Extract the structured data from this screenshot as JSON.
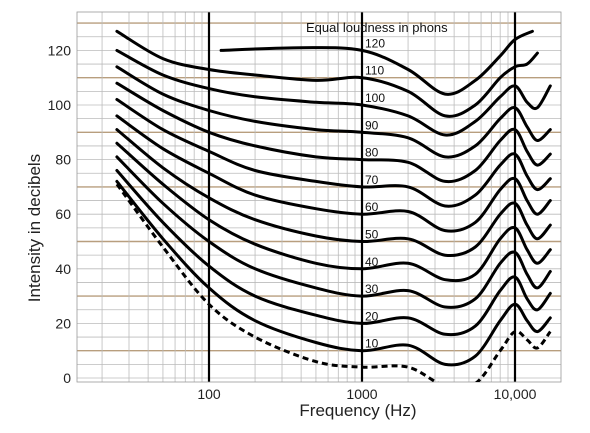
{
  "chart_data": {
    "type": "line",
    "title": "Equal loudness in phons",
    "xlabel": "Frequency (Hz)",
    "ylabel": "Intensity in decibels",
    "x_scale": "log",
    "xlim": [
      20,
      20000
    ],
    "ylim": [
      0,
      130
    ],
    "x_ticks": [
      {
        "value": 100,
        "label": "100"
      },
      {
        "value": 1000,
        "label": "1000",
        "color": "#e8112d"
      },
      {
        "value": 10000,
        "label": "10,000"
      }
    ],
    "y_ticks": [
      0,
      20,
      40,
      60,
      80,
      100,
      120
    ],
    "grid": true,
    "colors": {
      "curve": "#000000",
      "grid": "#bbbbbb",
      "grid_major": "#b89e7e",
      "accent": "#e8112d"
    },
    "series": [
      {
        "name": "120",
        "points": [
          [
            120,
            120
          ],
          [
            400,
            121
          ],
          [
            1000,
            120
          ],
          [
            2000,
            113
          ],
          [
            3500,
            104
          ],
          [
            5500,
            109
          ],
          [
            8000,
            118
          ],
          [
            10000,
            124
          ],
          [
            13000,
            127
          ]
        ]
      },
      {
        "name": "110",
        "points": [
          [
            25,
            127
          ],
          [
            50,
            117
          ],
          [
            100,
            113
          ],
          [
            200,
            111
          ],
          [
            500,
            109
          ],
          [
            1000,
            110
          ],
          [
            2000,
            105
          ],
          [
            3500,
            96
          ],
          [
            5500,
            100
          ],
          [
            8000,
            110
          ],
          [
            10000,
            114
          ],
          [
            12000,
            115
          ],
          [
            14000,
            119
          ]
        ]
      },
      {
        "name": "100",
        "points": [
          [
            25,
            120
          ],
          [
            50,
            111
          ],
          [
            100,
            106
          ],
          [
            200,
            103
          ],
          [
            500,
            101
          ],
          [
            1000,
            100
          ],
          [
            2000,
            96
          ],
          [
            3500,
            89
          ],
          [
            5500,
            94
          ],
          [
            8000,
            103
          ],
          [
            10000,
            107
          ],
          [
            12000,
            101
          ],
          [
            14000,
            99
          ],
          [
            17000,
            107
          ]
        ]
      },
      {
        "name": "90",
        "points": [
          [
            25,
            114
          ],
          [
            50,
            104
          ],
          [
            100,
            98
          ],
          [
            200,
            94
          ],
          [
            500,
            91
          ],
          [
            1000,
            90
          ],
          [
            2000,
            88
          ],
          [
            3500,
            81
          ],
          [
            5500,
            85
          ],
          [
            8000,
            95
          ],
          [
            10000,
            99
          ],
          [
            12000,
            92
          ],
          [
            14000,
            87
          ],
          [
            17000,
            91
          ]
        ]
      },
      {
        "name": "80",
        "points": [
          [
            25,
            108
          ],
          [
            50,
            98
          ],
          [
            100,
            90
          ],
          [
            200,
            85
          ],
          [
            500,
            81
          ],
          [
            1000,
            80
          ],
          [
            2000,
            79
          ],
          [
            3500,
            72
          ],
          [
            5500,
            76
          ],
          [
            8000,
            87
          ],
          [
            10000,
            91
          ],
          [
            12000,
            83
          ],
          [
            14000,
            78
          ],
          [
            17000,
            82
          ]
        ]
      },
      {
        "name": "70",
        "points": [
          [
            25,
            102
          ],
          [
            50,
            91
          ],
          [
            100,
            83
          ],
          [
            200,
            76
          ],
          [
            500,
            72
          ],
          [
            1000,
            70
          ],
          [
            2000,
            70
          ],
          [
            3500,
            63
          ],
          [
            5500,
            67
          ],
          [
            8000,
            78
          ],
          [
            10000,
            82
          ],
          [
            12000,
            74
          ],
          [
            14000,
            69
          ],
          [
            17000,
            73
          ]
        ]
      },
      {
        "name": "60",
        "points": [
          [
            25,
            96
          ],
          [
            50,
            84
          ],
          [
            100,
            75
          ],
          [
            200,
            67
          ],
          [
            500,
            62
          ],
          [
            1000,
            60
          ],
          [
            2000,
            61
          ],
          [
            3500,
            54
          ],
          [
            5500,
            57
          ],
          [
            8000,
            69
          ],
          [
            10000,
            73
          ],
          [
            12000,
            65
          ],
          [
            14000,
            60
          ],
          [
            17000,
            65
          ]
        ]
      },
      {
        "name": "50",
        "points": [
          [
            25,
            91
          ],
          [
            50,
            77
          ],
          [
            100,
            66
          ],
          [
            200,
            58
          ],
          [
            500,
            52
          ],
          [
            1000,
            50
          ],
          [
            2000,
            51
          ],
          [
            3500,
            45
          ],
          [
            5500,
            48
          ],
          [
            8000,
            60
          ],
          [
            10000,
            64
          ],
          [
            12000,
            56
          ],
          [
            14000,
            51
          ],
          [
            17000,
            56
          ]
        ]
      },
      {
        "name": "40",
        "points": [
          [
            25,
            86
          ],
          [
            50,
            71
          ],
          [
            100,
            58
          ],
          [
            200,
            49
          ],
          [
            500,
            42
          ],
          [
            1000,
            40
          ],
          [
            2000,
            42
          ],
          [
            3500,
            36
          ],
          [
            5500,
            38
          ],
          [
            8000,
            51
          ],
          [
            10000,
            55
          ],
          [
            12000,
            47
          ],
          [
            14000,
            42
          ],
          [
            17000,
            47
          ]
        ]
      },
      {
        "name": "30",
        "points": [
          [
            25,
            81
          ],
          [
            50,
            64
          ],
          [
            100,
            50
          ],
          [
            200,
            40
          ],
          [
            500,
            33
          ],
          [
            1000,
            30
          ],
          [
            2000,
            32
          ],
          [
            3500,
            26
          ],
          [
            5500,
            29
          ],
          [
            8000,
            42
          ],
          [
            10000,
            46
          ],
          [
            12000,
            38
          ],
          [
            14000,
            33
          ],
          [
            17000,
            39
          ]
        ]
      },
      {
        "name": "20",
        "points": [
          [
            25,
            76
          ],
          [
            50,
            57
          ],
          [
            100,
            41
          ],
          [
            200,
            30
          ],
          [
            500,
            23
          ],
          [
            1000,
            20
          ],
          [
            2000,
            22
          ],
          [
            3500,
            16
          ],
          [
            5500,
            19
          ],
          [
            8000,
            32
          ],
          [
            10000,
            37
          ],
          [
            12000,
            29
          ],
          [
            14000,
            25
          ],
          [
            17000,
            31
          ]
        ]
      },
      {
        "name": "10",
        "points": [
          [
            25,
            72
          ],
          [
            50,
            51
          ],
          [
            100,
            33
          ],
          [
            200,
            21
          ],
          [
            500,
            13
          ],
          [
            1000,
            10
          ],
          [
            2000,
            12
          ],
          [
            3500,
            5
          ],
          [
            5500,
            8
          ],
          [
            8000,
            21
          ],
          [
            10000,
            27
          ],
          [
            12000,
            21
          ],
          [
            14000,
            17
          ],
          [
            17000,
            22
          ]
        ]
      },
      {
        "name": "",
        "style": "dashed",
        "points": [
          [
            25,
            71
          ],
          [
            50,
            48
          ],
          [
            100,
            27
          ],
          [
            200,
            15
          ],
          [
            500,
            6
          ],
          [
            1000,
            4
          ],
          [
            2000,
            4
          ],
          [
            3500,
            -3
          ],
          [
            5500,
            -2
          ],
          [
            8000,
            10
          ],
          [
            10000,
            17
          ],
          [
            12000,
            14
          ],
          [
            14000,
            11
          ],
          [
            17000,
            17
          ]
        ]
      }
    ]
  }
}
